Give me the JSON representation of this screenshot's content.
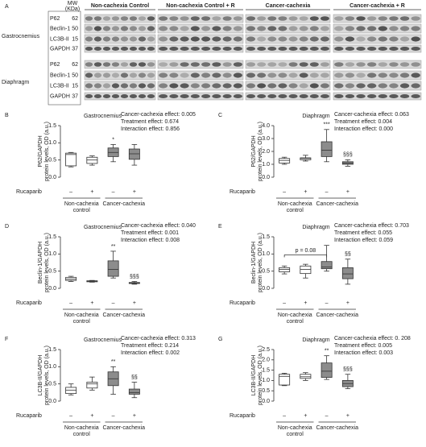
{
  "blot": {
    "panel": "A",
    "mw_header": [
      "MW",
      "(KDa)"
    ],
    "groups": [
      "Non-cachexia Control",
      "Non-cachexia Control + R",
      "Cancer-cachexia",
      "Cancer-cachexia + R"
    ],
    "tissues": [
      {
        "name": "Gastrocnemius",
        "rows": [
          {
            "protein": "P62",
            "mw": 62
          },
          {
            "protein": "Beclin-1",
            "mw": 50
          },
          {
            "protein": "LC3B-II",
            "mw": 15
          },
          {
            "protein": "GAPDH",
            "mw": 37
          }
        ]
      },
      {
        "name": "Diaphragm",
        "rows": [
          {
            "protein": "P62",
            "mw": 62
          },
          {
            "protein": "Beclin-1",
            "mw": 50
          },
          {
            "protein": "LC3B-II",
            "mw": 15
          },
          {
            "protein": "GAPDH",
            "mw": 37
          }
        ]
      }
    ]
  },
  "chart_data": [
    {
      "type": "box",
      "panel": "B",
      "title": "Gastrocnemius",
      "ylabel": [
        "P62/GAPDH",
        "protein levels, OD (a.u.)"
      ],
      "stats": [
        "Cancer-cachexia effect: 0.005",
        "Treatment effect: 0.674",
        "Interaction effect: 0.856"
      ],
      "xlabel": "Rucaparib",
      "categories": [
        "–",
        "+",
        "–",
        "+"
      ],
      "groups": [
        [
          "Non-cachexia",
          "control"
        ],
        [
          "Cancer-cachexia"
        ]
      ],
      "box_colors": [
        "#ffffff",
        "#ffffff",
        "#8c8c8c",
        "#8c8c8c"
      ],
      "ylim": [
        0,
        1.5
      ],
      "yticks": [
        {
          "value": 0,
          "label": "0.0"
        },
        0.5,
        {
          "value": 1,
          "label": "1.0"
        },
        1.5
      ],
      "boxes": [
        {
          "min": 0.3,
          "q1": 0.33,
          "median": 0.66,
          "q3": 0.7,
          "max": 0.72
        },
        {
          "min": 0.35,
          "q1": 0.4,
          "median": 0.5,
          "q3": 0.58,
          "max": 0.62
        },
        {
          "min": 0.45,
          "q1": 0.6,
          "median": 0.72,
          "q3": 0.85,
          "max": 0.95
        },
        {
          "min": 0.35,
          "q1": 0.52,
          "median": 0.68,
          "q3": 0.82,
          "max": 0.95
        }
      ],
      "significance": [
        null,
        null,
        "*",
        null
      ]
    },
    {
      "type": "box",
      "panel": "C",
      "title": "Diaphragm",
      "ylabel": [
        "P62/GAPDH",
        "protein levels, OD (a.u.)"
      ],
      "stats": [
        "Cancer-cachexia effect: 0.063",
        "Treatment effect: 0.004",
        "Interaction effect: 0.000"
      ],
      "xlabel": "Rucaparib",
      "categories": [
        "–",
        "+",
        "–",
        "+"
      ],
      "groups": [
        [
          "Non-cachexia",
          "control"
        ],
        [
          "Cancer-cachexia"
        ]
      ],
      "box_colors": [
        "#ffffff",
        "#ffffff",
        "#8c8c8c",
        "#8c8c8c"
      ],
      "ylim": [
        0,
        4
      ],
      "yticks": [
        {
          "value": 0,
          "label": "0.0"
        },
        {
          "value": 1,
          "label": "1.0"
        },
        {
          "value": 2,
          "label": "2.0"
        },
        {
          "value": 3,
          "label": "3.0"
        },
        {
          "value": 4,
          "label": "4.0"
        }
      ],
      "boxes": [
        {
          "min": 1.0,
          "q1": 1.1,
          "median": 1.3,
          "q3": 1.45,
          "max": 1.55
        },
        {
          "min": 1.25,
          "q1": 1.35,
          "median": 1.45,
          "q3": 1.5,
          "max": 1.7
        },
        {
          "min": 1.2,
          "q1": 1.6,
          "median": 2.1,
          "q3": 2.75,
          "max": 3.7
        },
        {
          "min": 0.85,
          "q1": 1.0,
          "median": 1.1,
          "q3": 1.2,
          "max": 1.35
        }
      ],
      "significance": [
        null,
        null,
        "***",
        "§§§"
      ]
    },
    {
      "type": "box",
      "panel": "D",
      "title": "Gastrocnemius",
      "ylabel": [
        "Beclin-1/GAPDH",
        "protein levels, OD (a.u.)"
      ],
      "stats": [
        "Cancer-cachexia effect: 0.040",
        "Treatment effect: 0.001",
        "Interaction effect: 0.008"
      ],
      "xlabel": "Rucaparib",
      "categories": [
        "–",
        "+",
        "–",
        "+"
      ],
      "groups": [
        [
          "Non-cachexia",
          "control"
        ],
        [
          "Cancer-cachexia"
        ]
      ],
      "box_colors": [
        "#ffffff",
        "#ffffff",
        "#8c8c8c",
        "#8c8c8c"
      ],
      "ylim": [
        0,
        1.5
      ],
      "yticks": [
        {
          "value": 0,
          "label": "0.0"
        },
        0.5,
        {
          "value": 1,
          "label": "1.0"
        },
        1.5
      ],
      "boxes": [
        {
          "min": 0.2,
          "q1": 0.23,
          "median": 0.27,
          "q3": 0.32,
          "max": 0.35
        },
        {
          "min": 0.18,
          "q1": 0.19,
          "median": 0.2,
          "q3": 0.22,
          "max": 0.23
        },
        {
          "min": 0.3,
          "q1": 0.35,
          "median": 0.55,
          "q3": 0.8,
          "max": 1.08
        },
        {
          "min": 0.12,
          "q1": 0.14,
          "median": 0.15,
          "q3": 0.17,
          "max": 0.2
        }
      ],
      "significance": [
        null,
        null,
        "**",
        "§§§"
      ]
    },
    {
      "type": "box",
      "panel": "E",
      "title": "Diaphragm",
      "ylabel": [
        "Beclin-1/GAPDH",
        "protein levels, OD (a.u.)"
      ],
      "stats": [
        "Cancer-cachexia effect: 0.703",
        "Treatment effect: 0.055",
        "Interaction effect: 0.059"
      ],
      "xlabel": "Rucaparib",
      "categories": [
        "–",
        "+",
        "–",
        "+"
      ],
      "groups": [
        [
          "Non-cachexia",
          "control"
        ],
        [
          "Cancer-cachexia"
        ]
      ],
      "box_colors": [
        "#ffffff",
        "#ffffff",
        "#8c8c8c",
        "#8c8c8c"
      ],
      "ylim": [
        0,
        1.5
      ],
      "yticks": [
        {
          "value": 0,
          "label": "0.0"
        },
        0.5,
        {
          "value": 1,
          "label": "1.0"
        },
        1.5
      ],
      "boxes": [
        {
          "min": 0.42,
          "q1": 0.48,
          "median": 0.55,
          "q3": 0.6,
          "max": 0.65
        },
        {
          "min": 0.3,
          "q1": 0.43,
          "median": 0.55,
          "q3": 0.65,
          "max": 0.7
        },
        {
          "min": 0.5,
          "q1": 0.57,
          "median": 0.62,
          "q3": 0.78,
          "max": 1.25
        },
        {
          "min": 0.12,
          "q1": 0.28,
          "median": 0.42,
          "q3": 0.6,
          "max": 0.85
        }
      ],
      "significance": [
        null,
        null,
        null,
        "§§"
      ],
      "bracket": "p = 0.08"
    },
    {
      "type": "box",
      "panel": "F",
      "title": "Gastrocnemius",
      "ylabel": [
        "LC3B-II/GAPDH",
        "protein levels, OD (a.u.)"
      ],
      "stats": [
        "Cancer-cachexia effect: 0.313",
        "Treatment effect: 0.214",
        "Interaction effect: 0.002"
      ],
      "xlabel": "Rucaparib",
      "categories": [
        "–",
        "+",
        "–",
        "+"
      ],
      "groups": [
        [
          "Non-cachexia",
          "control"
        ],
        [
          "Cancer-cachexia"
        ]
      ],
      "box_colors": [
        "#ffffff",
        "#ffffff",
        "#8c8c8c",
        "#8c8c8c"
      ],
      "ylim": [
        0,
        1.5
      ],
      "yticks": [
        {
          "value": 0,
          "label": "0.0"
        },
        0.5,
        {
          "value": 1,
          "label": "1.0"
        },
        1.5
      ],
      "boxes": [
        {
          "min": 0.18,
          "q1": 0.22,
          "median": 0.32,
          "q3": 0.4,
          "max": 0.5
        },
        {
          "min": 0.32,
          "q1": 0.38,
          "median": 0.5,
          "q3": 0.55,
          "max": 0.7
        },
        {
          "min": 0.2,
          "q1": 0.45,
          "median": 0.65,
          "q3": 0.85,
          "max": 1.0
        },
        {
          "min": 0.1,
          "q1": 0.2,
          "median": 0.25,
          "q3": 0.35,
          "max": 0.55
        }
      ],
      "significance": [
        null,
        null,
        "**",
        "§§"
      ]
    },
    {
      "type": "box",
      "panel": "G",
      "title": "Diaphragm",
      "ylabel": [
        "LC3B-II/GAPDH",
        "protein levels, OD (a.u.)"
      ],
      "stats": [
        "Cancer-cachexia effect: 0. 208",
        "Treatment effect: 0.005",
        "Interaction effect: 0.003"
      ],
      "xlabel": "Rucaparib",
      "categories": [
        "–",
        "+",
        "–",
        "+"
      ],
      "groups": [
        [
          "Non-cachexia",
          "control"
        ],
        [
          "Cancer-cachexia"
        ]
      ],
      "box_colors": [
        "#ffffff",
        "#ffffff",
        "#8c8c8c",
        "#8c8c8c"
      ],
      "ylim": [
        0,
        2.5
      ],
      "yticks": [
        {
          "value": 0,
          "label": "0.0"
        },
        0.5,
        {
          "value": 1,
          "label": "1.0"
        },
        1.5,
        {
          "value": 2,
          "label": "2.0"
        },
        2.5
      ],
      "boxes": [
        {
          "min": 0.75,
          "q1": 0.78,
          "median": 1.2,
          "q3": 1.3,
          "max": 1.35
        },
        {
          "min": 1.0,
          "q1": 1.1,
          "median": 1.18,
          "q3": 1.3,
          "max": 1.38
        },
        {
          "min": 1.05,
          "q1": 1.15,
          "median": 1.45,
          "q3": 1.85,
          "max": 2.2
        },
        {
          "min": 0.6,
          "q1": 0.7,
          "median": 0.85,
          "q3": 1.0,
          "max": 1.3
        }
      ],
      "significance": [
        null,
        null,
        "**",
        "§§§"
      ]
    }
  ]
}
